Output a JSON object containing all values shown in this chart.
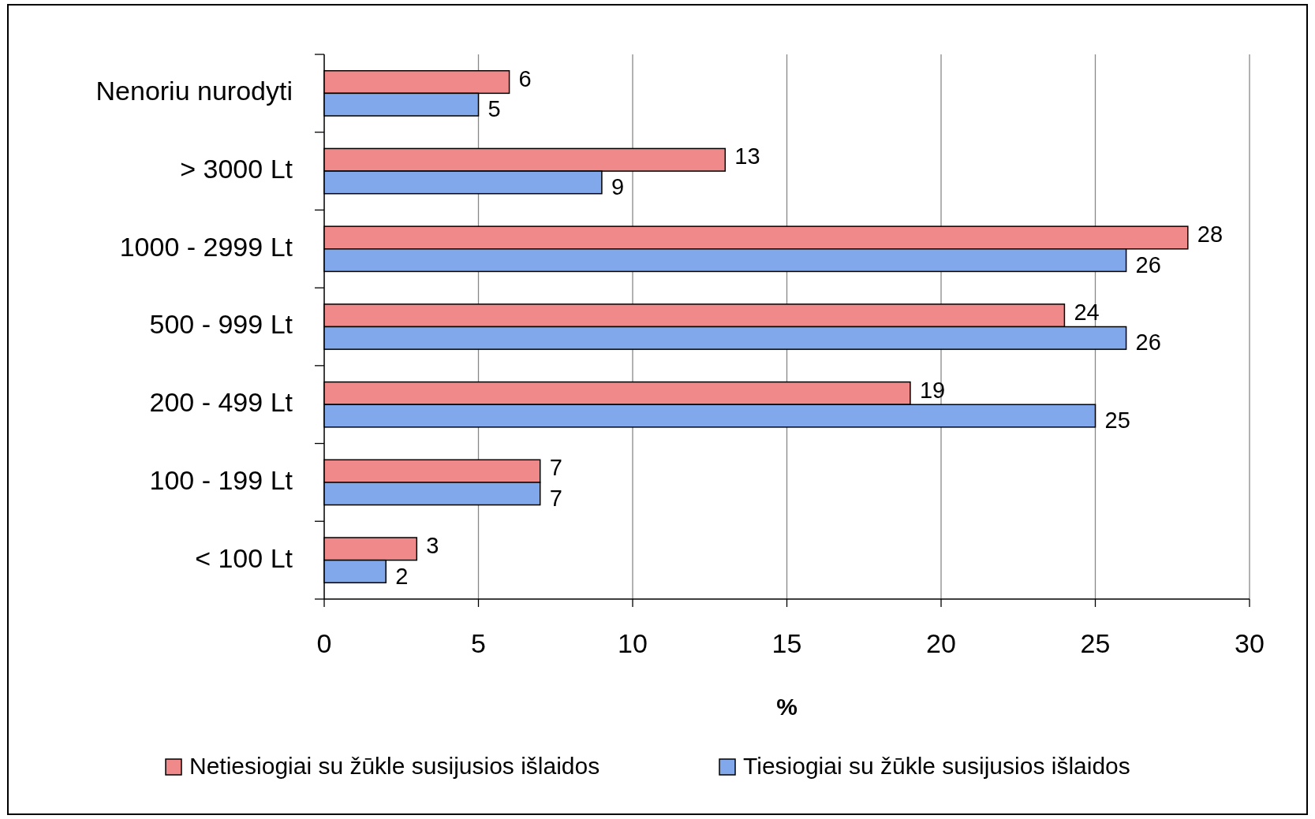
{
  "chart_data": {
    "type": "bar",
    "orientation": "horizontal",
    "categories": [
      "Nenoriu nurodyti",
      "> 3000 Lt",
      "1000 - 2999 Lt",
      "500 - 999 Lt",
      "200 - 499 Lt",
      "100 - 199 Lt",
      "< 100 Lt"
    ],
    "series": [
      {
        "name": "Netiesiogiai su žūkle susijusios išlaidos",
        "color": "#f08a8a",
        "values": [
          6,
          13,
          28,
          24,
          19,
          7,
          3
        ]
      },
      {
        "name": "Tiesiogiai su žūkle susijusios išlaidos",
        "color": "#80a8ea",
        "values": [
          5,
          9,
          26,
          26,
          25,
          7,
          2
        ]
      }
    ],
    "xlabel": "%",
    "xlim": [
      0,
      30
    ],
    "xticks": [
      0,
      5,
      10,
      15,
      20,
      25,
      30
    ],
    "grid": "x",
    "legend": "bottom",
    "data_labels": true
  }
}
